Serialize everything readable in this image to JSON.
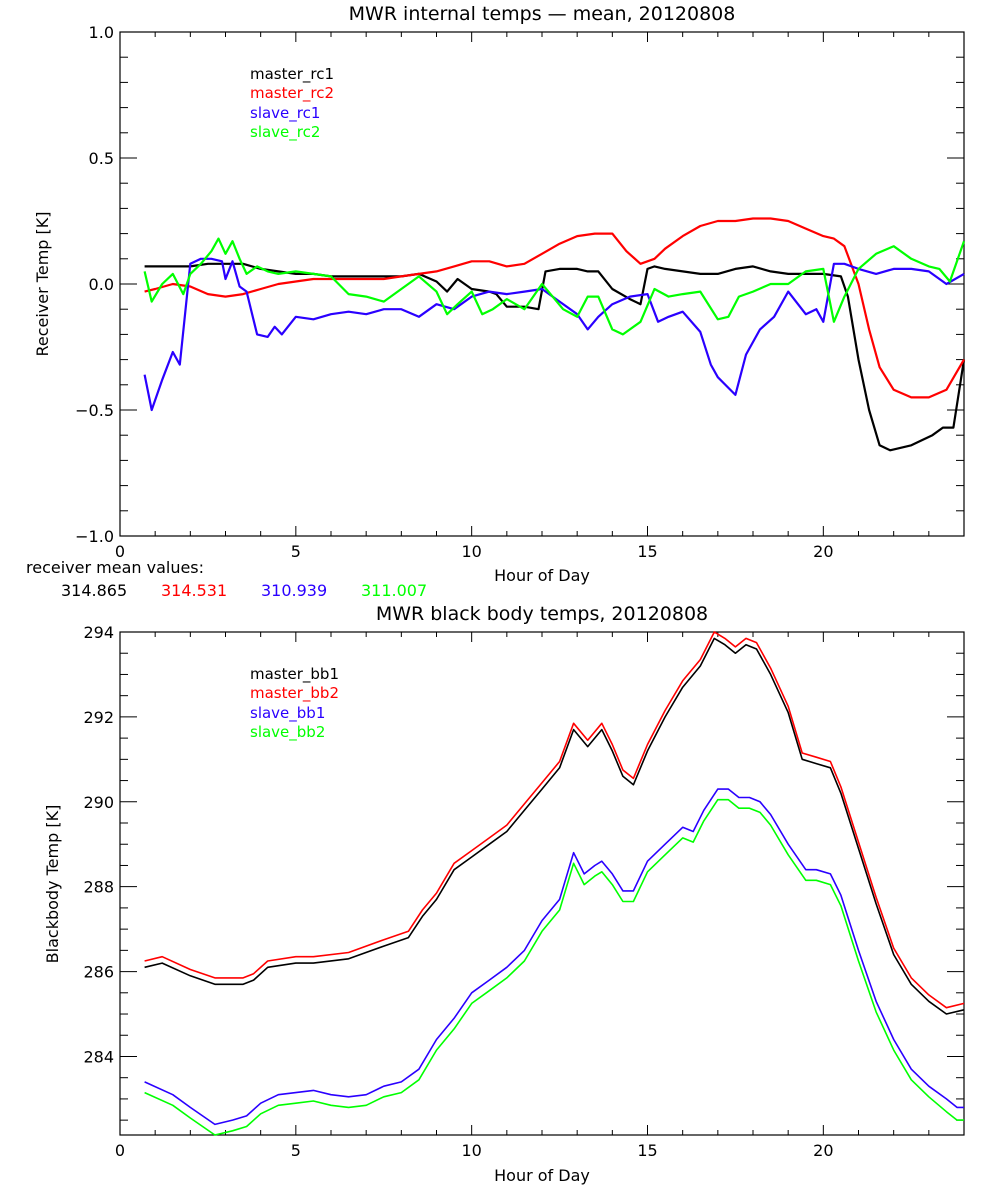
{
  "chart_data": [
    {
      "type": "line",
      "title": "MWR internal temps — mean, 20120808",
      "xlabel": "Hour of Day",
      "ylabel": "Receiver Temp [K]",
      "xlim": [
        0,
        24
      ],
      "ylim": [
        -1.0,
        1.0
      ],
      "xticks": [
        0,
        5,
        10,
        15,
        20
      ],
      "xtick_labels": [
        "0",
        "5",
        "10",
        "15",
        "20"
      ],
      "yticks": [
        -1.0,
        -0.5,
        0.0,
        0.5,
        1.0
      ],
      "ytick_labels": [
        "−1.0",
        "−0.5",
        "0.0",
        "0.5",
        "1.0"
      ],
      "grid": false,
      "legend_position": "top-left",
      "series": [
        {
          "name": "master_rc1",
          "color": "#000000",
          "x": [
            0.7,
            1.0,
            1.5,
            2.0,
            2.5,
            3.0,
            3.5,
            4.0,
            4.5,
            5.0,
            5.5,
            6.0,
            6.5,
            7.0,
            7.5,
            8.0,
            8.5,
            9.0,
            9.3,
            9.6,
            10.0,
            10.5,
            10.7,
            11.0,
            11.5,
            11.9,
            12.1,
            12.5,
            13.0,
            13.3,
            13.6,
            14.0,
            14.5,
            14.8,
            15.0,
            15.2,
            15.5,
            16.0,
            16.5,
            17.0,
            17.5,
            18.0,
            18.5,
            19.0,
            19.5,
            20.0,
            20.5,
            20.7,
            21.0,
            21.3,
            21.6,
            21.9,
            22.2,
            22.5,
            22.8,
            23.1,
            23.4,
            23.7,
            24.0
          ],
          "y": [
            0.07,
            0.07,
            0.07,
            0.07,
            0.08,
            0.08,
            0.08,
            0.06,
            0.05,
            0.04,
            0.04,
            0.03,
            0.03,
            0.03,
            0.03,
            0.03,
            0.04,
            0.01,
            -0.03,
            0.02,
            -0.02,
            -0.03,
            -0.04,
            -0.09,
            -0.09,
            -0.1,
            0.05,
            0.06,
            0.06,
            0.05,
            0.05,
            -0.02,
            -0.06,
            -0.08,
            0.06,
            0.07,
            0.06,
            0.05,
            0.04,
            0.04,
            0.06,
            0.07,
            0.05,
            0.04,
            0.04,
            0.04,
            0.03,
            -0.05,
            -0.3,
            -0.5,
            -0.64,
            -0.66,
            -0.65,
            -0.64,
            -0.62,
            -0.6,
            -0.57,
            -0.57,
            -0.3
          ]
        },
        {
          "name": "master_rc2",
          "color": "#ff0000",
          "x": [
            0.7,
            1.0,
            1.5,
            2.0,
            2.5,
            3.0,
            3.5,
            4.0,
            4.5,
            5.0,
            5.5,
            6.0,
            6.5,
            7.0,
            7.5,
            8.0,
            8.5,
            9.0,
            9.5,
            10.0,
            10.5,
            11.0,
            11.5,
            12.0,
            12.5,
            13.0,
            13.5,
            14.0,
            14.4,
            14.8,
            15.2,
            15.5,
            16.0,
            16.5,
            17.0,
            17.5,
            18.0,
            18.5,
            19.0,
            19.5,
            20.0,
            20.3,
            20.6,
            21.0,
            21.3,
            21.6,
            22.0,
            22.5,
            23.0,
            23.5,
            24.0
          ],
          "y": [
            -0.03,
            -0.02,
            0.0,
            -0.01,
            -0.04,
            -0.05,
            -0.04,
            -0.02,
            0.0,
            0.01,
            0.02,
            0.02,
            0.02,
            0.02,
            0.02,
            0.03,
            0.04,
            0.05,
            0.07,
            0.09,
            0.09,
            0.07,
            0.08,
            0.12,
            0.16,
            0.19,
            0.2,
            0.2,
            0.13,
            0.08,
            0.1,
            0.14,
            0.19,
            0.23,
            0.25,
            0.25,
            0.26,
            0.26,
            0.25,
            0.22,
            0.19,
            0.18,
            0.15,
            0.0,
            -0.18,
            -0.33,
            -0.42,
            -0.45,
            -0.45,
            -0.42,
            -0.3
          ]
        },
        {
          "name": "slave_rc1",
          "color": "#2a00ff",
          "x": [
            0.7,
            0.9,
            1.2,
            1.5,
            1.7,
            2.0,
            2.3,
            2.6,
            2.9,
            3.0,
            3.2,
            3.4,
            3.6,
            3.9,
            4.2,
            4.4,
            4.6,
            5.0,
            5.5,
            6.0,
            6.5,
            7.0,
            7.5,
            8.0,
            8.5,
            9.0,
            9.5,
            10.0,
            10.5,
            11.0,
            11.5,
            12.0,
            12.5,
            13.0,
            13.3,
            13.6,
            14.0,
            14.5,
            15.0,
            15.3,
            15.6,
            16.0,
            16.5,
            16.8,
            17.0,
            17.5,
            17.8,
            18.2,
            18.6,
            19.0,
            19.5,
            19.8,
            20.0,
            20.3,
            20.6,
            21.0,
            21.5,
            22.0,
            22.5,
            23.0,
            23.5,
            24.0
          ],
          "y": [
            -0.36,
            -0.5,
            -0.38,
            -0.27,
            -0.32,
            0.08,
            0.1,
            0.1,
            0.09,
            0.02,
            0.09,
            -0.01,
            -0.03,
            -0.2,
            -0.21,
            -0.17,
            -0.2,
            -0.13,
            -0.14,
            -0.12,
            -0.11,
            -0.12,
            -0.1,
            -0.1,
            -0.13,
            -0.08,
            -0.1,
            -0.05,
            -0.03,
            -0.04,
            -0.03,
            -0.02,
            -0.07,
            -0.12,
            -0.18,
            -0.13,
            -0.08,
            -0.05,
            -0.04,
            -0.15,
            -0.13,
            -0.11,
            -0.19,
            -0.32,
            -0.37,
            -0.44,
            -0.28,
            -0.18,
            -0.13,
            -0.03,
            -0.12,
            -0.1,
            -0.15,
            0.08,
            0.08,
            0.06,
            0.04,
            0.06,
            0.06,
            0.05,
            0.0,
            0.04
          ]
        },
        {
          "name": "slave_rc2",
          "color": "#00ff00",
          "x": [
            0.7,
            0.9,
            1.2,
            1.5,
            1.8,
            2.0,
            2.3,
            2.6,
            2.8,
            3.0,
            3.2,
            3.4,
            3.6,
            3.9,
            4.2,
            4.5,
            5.0,
            5.5,
            6.0,
            6.5,
            7.0,
            7.5,
            8.0,
            8.5,
            9.0,
            9.3,
            9.6,
            10.0,
            10.3,
            10.6,
            11.0,
            11.5,
            12.0,
            12.3,
            12.6,
            13.0,
            13.3,
            13.6,
            14.0,
            14.3,
            14.8,
            15.2,
            15.6,
            16.0,
            16.5,
            17.0,
            17.3,
            17.6,
            18.0,
            18.5,
            19.0,
            19.5,
            20.0,
            20.3,
            20.6,
            21.0,
            21.5,
            22.0,
            22.5,
            23.0,
            23.3,
            23.6,
            24.0
          ],
          "y": [
            0.05,
            -0.07,
            0.0,
            0.04,
            -0.04,
            0.04,
            0.08,
            0.13,
            0.18,
            0.12,
            0.17,
            0.1,
            0.04,
            0.07,
            0.05,
            0.04,
            0.05,
            0.04,
            0.03,
            -0.04,
            -0.05,
            -0.07,
            -0.02,
            0.03,
            -0.03,
            -0.12,
            -0.08,
            -0.03,
            -0.12,
            -0.1,
            -0.06,
            -0.1,
            0.0,
            -0.05,
            -0.1,
            -0.13,
            -0.05,
            -0.05,
            -0.18,
            -0.2,
            -0.15,
            -0.02,
            -0.05,
            -0.04,
            -0.03,
            -0.14,
            -0.13,
            -0.05,
            -0.03,
            0.0,
            0.0,
            0.05,
            0.06,
            -0.15,
            -0.05,
            0.06,
            0.12,
            0.15,
            0.1,
            0.07,
            0.06,
            0.01,
            0.17
          ]
        }
      ],
      "annotation": {
        "label": "receiver mean values:",
        "values": [
          {
            "text": "314.865",
            "color": "#000000"
          },
          {
            "text": "314.531",
            "color": "#ff0000"
          },
          {
            "text": "310.939",
            "color": "#2a00ff"
          },
          {
            "text": "311.007",
            "color": "#00ff00"
          }
        ]
      }
    },
    {
      "type": "line",
      "title": "MWR black body temps, 20120808",
      "xlabel": "Hour of Day",
      "ylabel": "Blackbody Temp [K]",
      "xlim": [
        0,
        24
      ],
      "ylim": [
        282.15,
        294.0
      ],
      "xticks": [
        0,
        5,
        10,
        15,
        20
      ],
      "xtick_labels": [
        "0",
        "5",
        "10",
        "15",
        "20"
      ],
      "yticks": [
        284,
        286,
        288,
        290,
        292,
        294
      ],
      "ytick_labels": [
        "284",
        "286",
        "288",
        "290",
        "292",
        "294"
      ],
      "grid": false,
      "legend_position": "top-left",
      "series": [
        {
          "name": "master_bb1",
          "color": "#000000",
          "x": [
            0.7,
            1.2,
            2.0,
            2.7,
            3.5,
            3.8,
            4.2,
            5.0,
            5.5,
            6.5,
            7.5,
            8.2,
            8.6,
            9.0,
            9.5,
            10.0,
            10.5,
            11.0,
            11.5,
            12.0,
            12.5,
            12.9,
            13.3,
            13.7,
            14.0,
            14.3,
            14.6,
            15.0,
            15.5,
            16.0,
            16.5,
            16.9,
            17.2,
            17.5,
            17.8,
            18.1,
            18.5,
            19.0,
            19.4,
            19.8,
            20.2,
            20.5,
            21.0,
            21.5,
            22.0,
            22.5,
            23.0,
            23.5,
            24.0
          ],
          "y": [
            286.1,
            286.2,
            285.9,
            285.7,
            285.7,
            285.8,
            286.1,
            286.2,
            286.2,
            286.3,
            286.6,
            286.8,
            287.3,
            287.7,
            288.4,
            288.7,
            289.0,
            289.3,
            289.8,
            290.3,
            290.8,
            291.7,
            291.3,
            291.7,
            291.2,
            290.6,
            290.4,
            291.2,
            292.0,
            292.7,
            293.2,
            293.85,
            293.7,
            293.5,
            293.7,
            293.6,
            293.0,
            292.1,
            291.0,
            290.9,
            290.8,
            290.2,
            288.9,
            287.6,
            286.4,
            285.7,
            285.3,
            285.0,
            285.1
          ]
        },
        {
          "name": "master_bb2",
          "color": "#ff0000",
          "x": [
            0.7,
            1.2,
            2.0,
            2.7,
            3.5,
            3.8,
            4.2,
            5.0,
            5.5,
            6.5,
            7.5,
            8.2,
            8.6,
            9.0,
            9.5,
            10.0,
            10.5,
            11.0,
            11.5,
            12.0,
            12.5,
            12.9,
            13.3,
            13.7,
            14.0,
            14.3,
            14.6,
            15.0,
            15.5,
            16.0,
            16.5,
            16.9,
            17.2,
            17.5,
            17.8,
            18.1,
            18.5,
            19.0,
            19.4,
            19.8,
            20.2,
            20.5,
            21.0,
            21.5,
            22.0,
            22.5,
            23.0,
            23.5,
            24.0
          ],
          "y": [
            286.25,
            286.35,
            286.05,
            285.85,
            285.85,
            285.95,
            286.25,
            286.35,
            286.35,
            286.45,
            286.75,
            286.95,
            287.45,
            287.85,
            288.55,
            288.85,
            289.15,
            289.45,
            289.95,
            290.45,
            290.95,
            291.85,
            291.45,
            291.85,
            291.35,
            290.75,
            290.55,
            291.35,
            292.15,
            292.85,
            293.35,
            294.0,
            293.85,
            293.65,
            293.85,
            293.75,
            293.15,
            292.25,
            291.15,
            291.05,
            290.95,
            290.35,
            289.05,
            287.75,
            286.55,
            285.85,
            285.45,
            285.15,
            285.25
          ]
        },
        {
          "name": "slave_bb1",
          "color": "#2a00ff",
          "x": [
            0.7,
            1.5,
            2.0,
            2.7,
            3.2,
            3.6,
            4.0,
            4.5,
            5.0,
            5.5,
            6.0,
            6.5,
            7.0,
            7.5,
            8.0,
            8.5,
            9.0,
            9.5,
            10.0,
            10.5,
            11.0,
            11.5,
            12.0,
            12.5,
            12.9,
            13.2,
            13.5,
            13.7,
            14.0,
            14.3,
            14.6,
            15.0,
            15.5,
            16.0,
            16.3,
            16.6,
            17.0,
            17.3,
            17.6,
            17.9,
            18.2,
            18.5,
            19.0,
            19.5,
            19.8,
            20.2,
            20.5,
            21.0,
            21.5,
            22.0,
            22.5,
            23.0,
            23.5,
            23.8,
            24.0
          ],
          "y": [
            283.4,
            283.1,
            282.8,
            282.4,
            282.5,
            282.6,
            282.9,
            283.1,
            283.15,
            283.2,
            283.1,
            283.05,
            283.1,
            283.3,
            283.4,
            283.7,
            284.4,
            284.9,
            285.5,
            285.8,
            286.1,
            286.5,
            287.2,
            287.7,
            288.8,
            288.3,
            288.5,
            288.6,
            288.3,
            287.9,
            287.9,
            288.6,
            289.0,
            289.4,
            289.3,
            289.8,
            290.3,
            290.3,
            290.1,
            290.1,
            290.0,
            289.7,
            289.0,
            288.4,
            288.4,
            288.3,
            287.8,
            286.5,
            285.3,
            284.4,
            283.7,
            283.3,
            283.0,
            282.8,
            282.8
          ]
        },
        {
          "name": "slave_bb2",
          "color": "#00ff00",
          "x": [
            0.7,
            1.5,
            2.0,
            2.7,
            3.2,
            3.6,
            4.0,
            4.5,
            5.0,
            5.5,
            6.0,
            6.5,
            7.0,
            7.5,
            8.0,
            8.5,
            9.0,
            9.5,
            10.0,
            10.5,
            11.0,
            11.5,
            12.0,
            12.5,
            12.9,
            13.2,
            13.5,
            13.7,
            14.0,
            14.3,
            14.6,
            15.0,
            15.5,
            16.0,
            16.3,
            16.6,
            17.0,
            17.3,
            17.6,
            17.9,
            18.2,
            18.5,
            19.0,
            19.5,
            19.8,
            20.2,
            20.5,
            21.0,
            21.5,
            22.0,
            22.5,
            23.0,
            23.5,
            23.8,
            24.0
          ],
          "y": [
            283.15,
            282.85,
            282.55,
            282.15,
            282.25,
            282.35,
            282.65,
            282.85,
            282.9,
            282.95,
            282.85,
            282.8,
            282.85,
            283.05,
            283.15,
            283.45,
            284.15,
            284.65,
            285.25,
            285.55,
            285.85,
            286.25,
            286.95,
            287.45,
            288.55,
            288.05,
            288.25,
            288.35,
            288.05,
            287.65,
            287.65,
            288.35,
            288.75,
            289.15,
            289.05,
            289.55,
            290.05,
            290.05,
            289.85,
            289.85,
            289.75,
            289.45,
            288.75,
            288.15,
            288.15,
            288.05,
            287.55,
            286.25,
            285.05,
            284.15,
            283.45,
            283.05,
            282.7,
            282.5,
            282.5
          ]
        }
      ]
    }
  ]
}
